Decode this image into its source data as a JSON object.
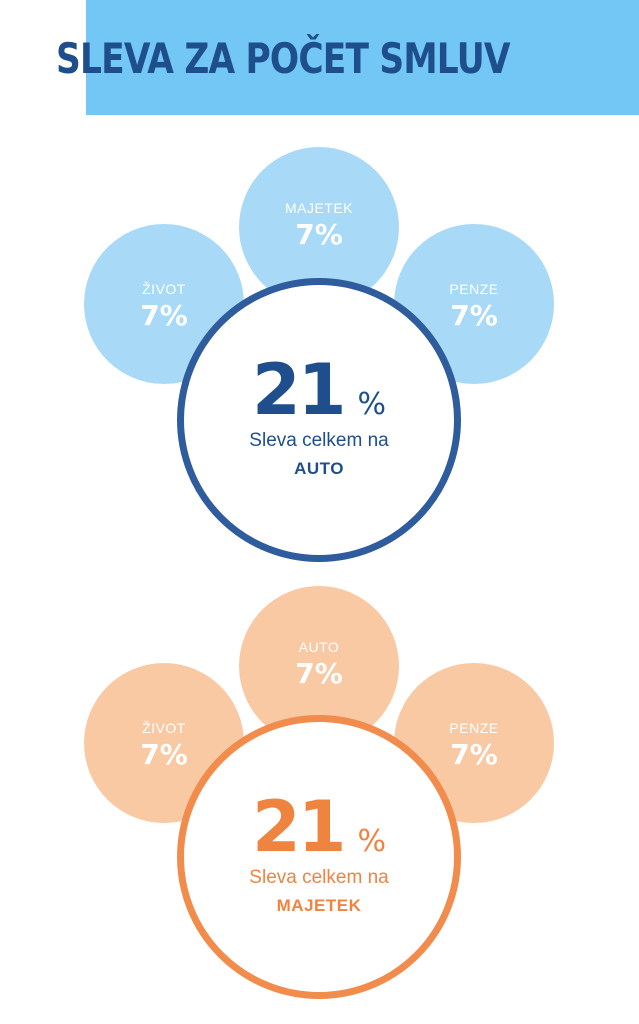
{
  "title": "SLEVA ZA POČET SMLUV",
  "colors": {
    "header_band": "#72c7f5",
    "title": "#1e4f8c",
    "blue_light": "#a8daf8",
    "blue_dark": "#2f5c9c",
    "orange_light": "#f9c9a4",
    "orange_dark": "#f28c4c"
  },
  "group_auto": {
    "top": {
      "label": "MAJETEK",
      "value": "7%"
    },
    "left": {
      "label": "ŽIVOT",
      "value": "7%"
    },
    "right": {
      "label": "PENZE",
      "value": "7%"
    },
    "total": {
      "number": "21",
      "percent": "%",
      "description": "Sleva celkem na",
      "product": "AUTO"
    }
  },
  "group_majetek": {
    "top": {
      "label": "AUTO",
      "value": "7%"
    },
    "left": {
      "label": "ŽIVOT",
      "value": "7%"
    },
    "right": {
      "label": "PENZE",
      "value": "7%"
    },
    "total": {
      "number": "21",
      "percent": "%",
      "description": "Sleva celkem na",
      "product": "MAJETEK"
    }
  }
}
